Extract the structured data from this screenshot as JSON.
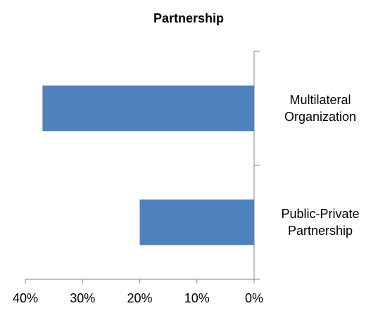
{
  "chart_data": {
    "type": "hbar",
    "title": "Partnership",
    "categories": [
      "Multilateral Organization",
      "Public-Private Partnership"
    ],
    "values": [
      37,
      20
    ],
    "color": "#4f81bd",
    "xlim": [
      0,
      40
    ],
    "x_reversed": true,
    "xticks": [
      {
        "value": 40,
        "label": "40%"
      },
      {
        "value": 30,
        "label": "30%"
      },
      {
        "value": 20,
        "label": "20%"
      },
      {
        "value": 10,
        "label": "10%"
      },
      {
        "value": 0,
        "label": "0%"
      }
    ],
    "grid": false
  }
}
